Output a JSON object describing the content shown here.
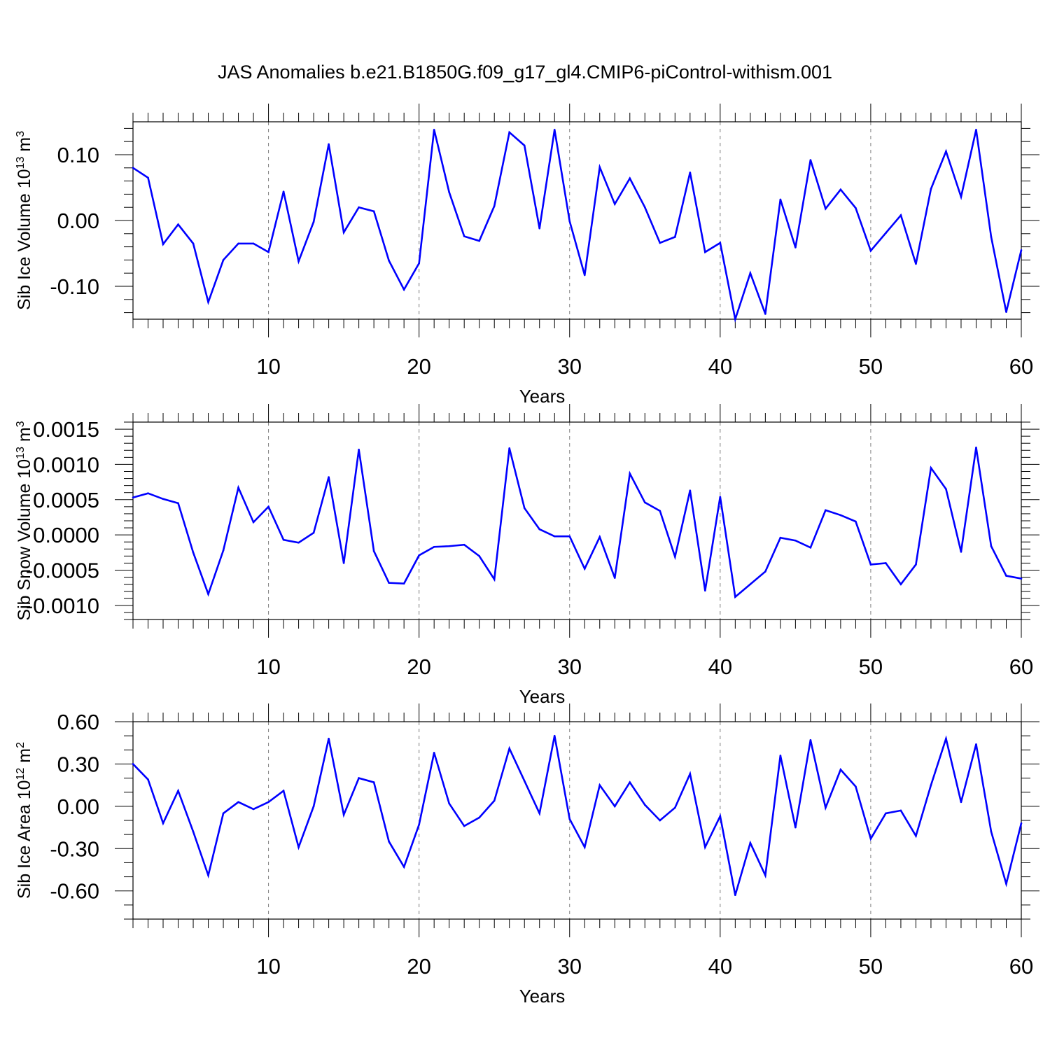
{
  "figure": {
    "title": "JAS Anomalies b.e21.B1850G.f09_g17_gl4.CMIP6-piControl-withism.001",
    "line_color": "#0000ff",
    "axis_color": "#000000",
    "gridline_color": "#7f7f7f"
  },
  "chart_data": [
    {
      "type": "line",
      "ylabel": {
        "main": "Sib Ice Volume 10",
        "exponent": "13",
        "unit": " m",
        "unit_exponent": "3"
      },
      "xlabel": "Years",
      "xlim": [
        1,
        60
      ],
      "ylim": [
        -0.15,
        0.15
      ],
      "xticks": [
        10,
        20,
        30,
        40,
        50,
        60
      ],
      "yticks": [
        -0.1,
        0.0,
        0.1
      ],
      "ytick_labels": [
        "-0.10",
        "0.00",
        "0.10"
      ],
      "yminor_step": 0.02,
      "grid": "vertical dashed at major x ticks",
      "x": [
        1,
        2,
        3,
        4,
        5,
        6,
        7,
        8,
        9,
        10,
        11,
        12,
        13,
        14,
        15,
        16,
        17,
        18,
        19,
        20,
        21,
        22,
        23,
        24,
        25,
        26,
        27,
        28,
        29,
        30,
        31,
        32,
        33,
        34,
        35,
        36,
        37,
        38,
        39,
        40,
        41,
        42,
        43,
        44,
        45,
        46,
        47,
        48,
        49,
        50,
        51,
        52,
        53,
        54,
        55,
        56,
        57,
        58,
        59,
        60
      ],
      "values": [
        0.08,
        0.065,
        -0.036,
        -0.006,
        -0.035,
        -0.124,
        -0.06,
        -0.035,
        -0.035,
        -0.048,
        0.044,
        -0.062,
        -0.002,
        0.116,
        -0.018,
        0.02,
        0.014,
        -0.061,
        -0.105,
        -0.065,
        0.138,
        0.043,
        -0.024,
        -0.031,
        0.022,
        0.134,
        0.114,
        -0.012,
        0.138,
        -0.001,
        -0.083,
        0.081,
        0.025,
        0.064,
        0.02,
        -0.034,
        -0.025,
        0.073,
        -0.048,
        -0.034,
        -0.15,
        -0.08,
        -0.142,
        0.032,
        -0.041,
        0.092,
        0.018,
        0.047,
        0.019,
        -0.046,
        -0.019,
        0.008,
        -0.066,
        0.048,
        0.105,
        0.036,
        0.138,
        -0.025,
        -0.139,
        -0.045
      ]
    },
    {
      "type": "line",
      "ylabel": {
        "main": "Sib Snow Volume 10",
        "exponent": "13",
        "unit": " m",
        "unit_exponent": "3"
      },
      "xlabel": "Years",
      "xlim": [
        1,
        60
      ],
      "ylim": [
        -0.0012,
        0.0016
      ],
      "xticks": [
        10,
        20,
        30,
        40,
        50,
        60
      ],
      "yticks": [
        -0.001,
        -0.0005,
        0.0,
        0.0005,
        0.001,
        0.0015
      ],
      "ytick_labels": [
        "-0.0010",
        "-0.0005",
        "0.0000",
        "0.0005",
        "0.0010",
        "0.0015"
      ],
      "yminor_step": 0.0001,
      "grid": "vertical dashed at major x ticks",
      "x": [
        1,
        2,
        3,
        4,
        5,
        6,
        7,
        8,
        9,
        10,
        11,
        12,
        13,
        14,
        15,
        16,
        17,
        18,
        19,
        20,
        21,
        22,
        23,
        24,
        25,
        26,
        27,
        28,
        29,
        30,
        31,
        32,
        33,
        34,
        35,
        36,
        37,
        38,
        39,
        40,
        41,
        42,
        43,
        44,
        45,
        46,
        47,
        48,
        49,
        50,
        51,
        52,
        53,
        54,
        55,
        56,
        57,
        58,
        59,
        60
      ],
      "values": [
        0.00053,
        0.00059,
        0.00051,
        0.00045,
        -0.00025,
        -0.00084,
        -0.00022,
        0.00067,
        0.00018,
        0.0004,
        -7e-05,
        -0.00011,
        3e-05,
        0.00082,
        -0.0004,
        0.00121,
        -0.00023,
        -0.00068,
        -0.00069,
        -0.00029,
        -0.00017,
        -0.00016,
        -0.00014,
        -0.0003,
        -0.00063,
        0.00123,
        0.00038,
        8e-05,
        -2e-05,
        -2e-05,
        -0.00048,
        -3e-05,
        -0.00061,
        0.00087,
        0.00046,
        0.00034,
        -0.00031,
        0.00063,
        -0.00079,
        0.00054,
        -0.00088,
        -0.0007,
        -0.00052,
        -4e-05,
        -8e-05,
        -0.00018,
        0.00035,
        0.00028,
        0.00019,
        -0.00042,
        -0.0004,
        -0.0007,
        -0.00042,
        0.00095,
        0.00065,
        -0.00024,
        0.00124,
        -0.00016,
        -0.00058,
        -0.00062
      ]
    },
    {
      "type": "line",
      "ylabel": {
        "main": "Sib Ice Area 10",
        "exponent": "12",
        "unit": " m",
        "unit_exponent": "2"
      },
      "xlabel": "Years",
      "xlim": [
        1,
        60
      ],
      "ylim": [
        -0.8,
        0.6
      ],
      "xticks": [
        10,
        20,
        30,
        40,
        50,
        60
      ],
      "yticks": [
        -0.6,
        -0.3,
        0.0,
        0.3,
        0.6
      ],
      "ytick_labels": [
        "-0.60",
        "-0.30",
        "0.00",
        "0.30",
        "0.60"
      ],
      "yminor_step": 0.1,
      "grid": "vertical dashed at major x ticks",
      "x": [
        1,
        2,
        3,
        4,
        5,
        6,
        7,
        8,
        9,
        10,
        11,
        12,
        13,
        14,
        15,
        16,
        17,
        18,
        19,
        20,
        21,
        22,
        23,
        24,
        25,
        26,
        27,
        28,
        29,
        30,
        31,
        32,
        33,
        34,
        35,
        36,
        37,
        38,
        39,
        40,
        41,
        42,
        43,
        44,
        45,
        46,
        47,
        48,
        49,
        50,
        51,
        52,
        53,
        54,
        55,
        56,
        57,
        58,
        59,
        60
      ],
      "values": [
        0.3,
        0.19,
        -0.12,
        0.11,
        -0.18,
        -0.49,
        -0.05,
        0.03,
        -0.02,
        0.03,
        0.11,
        -0.29,
        0.0,
        0.48,
        -0.06,
        0.2,
        0.17,
        -0.25,
        -0.43,
        -0.13,
        0.38,
        0.02,
        -0.14,
        -0.08,
        0.04,
        0.41,
        0.18,
        -0.05,
        0.5,
        -0.09,
        -0.29,
        0.15,
        0.0,
        0.17,
        0.01,
        -0.1,
        -0.01,
        0.23,
        -0.29,
        -0.07,
        -0.63,
        -0.26,
        -0.49,
        0.36,
        -0.15,
        0.47,
        -0.01,
        0.26,
        0.14,
        -0.23,
        -0.05,
        -0.03,
        -0.21,
        0.15,
        0.48,
        0.03,
        0.44,
        -0.18,
        -0.55,
        -0.12
      ]
    }
  ]
}
